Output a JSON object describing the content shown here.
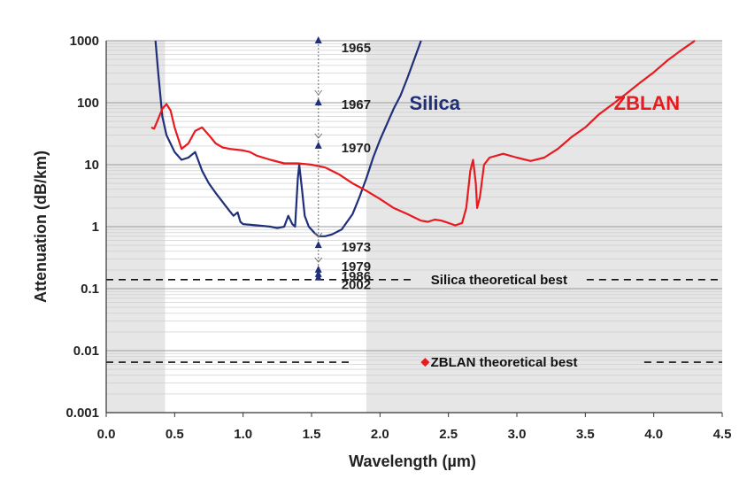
{
  "chart_data": {
    "type": "line",
    "xlabel": "Wavelength (µm)",
    "ylabel": "Attenuation (dB/km)",
    "xlim": [
      0,
      4.5
    ],
    "ylim": [
      0.001,
      1000
    ],
    "yscale": "log",
    "grid": true,
    "x_ticks": [
      "0.0",
      "0.5",
      "1.0",
      "1.5",
      "2.0",
      "2.5",
      "3.0",
      "3.5",
      "4.0",
      "4.5"
    ],
    "y_ticks": [
      "0.001",
      "0.01",
      "0.1",
      "1",
      "10",
      "100",
      "1000"
    ],
    "shaded_regions": [
      [
        0,
        0.43
      ],
      [
        1.9,
        4.5
      ]
    ],
    "series": [
      {
        "name": "Silica",
        "color": "#1f2f7a",
        "points": [
          [
            0.36,
            1000
          ],
          [
            0.38,
            300
          ],
          [
            0.41,
            60
          ],
          [
            0.44,
            30
          ],
          [
            0.5,
            16
          ],
          [
            0.55,
            12
          ],
          [
            0.6,
            13
          ],
          [
            0.65,
            16
          ],
          [
            0.7,
            8
          ],
          [
            0.75,
            5
          ],
          [
            0.8,
            3.5
          ],
          [
            0.85,
            2.5
          ],
          [
            0.9,
            1.8
          ],
          [
            0.93,
            1.5
          ],
          [
            0.96,
            1.7
          ],
          [
            0.98,
            1.2
          ],
          [
            1.0,
            1.1
          ],
          [
            1.1,
            1.05
          ],
          [
            1.2,
            1.0
          ],
          [
            1.25,
            0.95
          ],
          [
            1.3,
            1.0
          ],
          [
            1.33,
            1.5
          ],
          [
            1.36,
            1.1
          ],
          [
            1.38,
            1.0
          ],
          [
            1.4,
            6
          ],
          [
            1.41,
            10
          ],
          [
            1.43,
            4
          ],
          [
            1.45,
            1.5
          ],
          [
            1.48,
            1.0
          ],
          [
            1.52,
            0.8
          ],
          [
            1.55,
            0.7
          ],
          [
            1.6,
            0.7
          ],
          [
            1.65,
            0.75
          ],
          [
            1.72,
            0.9
          ],
          [
            1.8,
            1.6
          ],
          [
            1.85,
            3
          ],
          [
            1.9,
            6
          ],
          [
            1.95,
            13
          ],
          [
            2.0,
            25
          ],
          [
            2.05,
            45
          ],
          [
            2.1,
            80
          ],
          [
            2.15,
            130
          ],
          [
            2.2,
            250
          ],
          [
            2.25,
            500
          ],
          [
            2.3,
            1000
          ]
        ]
      },
      {
        "name": "ZBLAN",
        "color": "#e8191f",
        "points": [
          [
            0.33,
            40
          ],
          [
            0.35,
            38
          ],
          [
            0.38,
            55
          ],
          [
            0.41,
            80
          ],
          [
            0.44,
            95
          ],
          [
            0.47,
            75
          ],
          [
            0.5,
            40
          ],
          [
            0.55,
            18
          ],
          [
            0.6,
            22
          ],
          [
            0.65,
            35
          ],
          [
            0.7,
            40
          ],
          [
            0.75,
            30
          ],
          [
            0.8,
            22
          ],
          [
            0.85,
            19
          ],
          [
            0.9,
            18
          ],
          [
            1.0,
            17
          ],
          [
            1.05,
            16
          ],
          [
            1.1,
            14
          ],
          [
            1.2,
            12
          ],
          [
            1.3,
            10.5
          ],
          [
            1.4,
            10.5
          ],
          [
            1.5,
            10
          ],
          [
            1.6,
            9
          ],
          [
            1.7,
            7
          ],
          [
            1.8,
            5
          ],
          [
            1.9,
            3.8
          ],
          [
            2.0,
            2.8
          ],
          [
            2.1,
            2.0
          ],
          [
            2.2,
            1.6
          ],
          [
            2.3,
            1.25
          ],
          [
            2.35,
            1.2
          ],
          [
            2.4,
            1.3
          ],
          [
            2.45,
            1.25
          ],
          [
            2.5,
            1.15
          ],
          [
            2.55,
            1.05
          ],
          [
            2.6,
            1.15
          ],
          [
            2.63,
            2.0
          ],
          [
            2.66,
            8
          ],
          [
            2.68,
            12
          ],
          [
            2.7,
            5
          ],
          [
            2.71,
            2.0
          ],
          [
            2.73,
            3.0
          ],
          [
            2.76,
            10
          ],
          [
            2.8,
            13
          ],
          [
            2.9,
            15
          ],
          [
            3.0,
            13
          ],
          [
            3.1,
            11.5
          ],
          [
            3.2,
            13
          ],
          [
            3.3,
            18
          ],
          [
            3.4,
            28
          ],
          [
            3.5,
            40
          ],
          [
            3.6,
            65
          ],
          [
            3.7,
            95
          ],
          [
            3.8,
            140
          ],
          [
            3.9,
            210
          ],
          [
            4.0,
            310
          ],
          [
            4.1,
            480
          ],
          [
            4.2,
            700
          ],
          [
            4.3,
            1000
          ]
        ]
      }
    ],
    "milestones": {
      "x": 1.55,
      "points": [
        {
          "year": "1965",
          "y": 1000
        },
        {
          "year": "1967",
          "y": 100
        },
        {
          "year": "1970",
          "y": 20
        },
        {
          "year": "1973",
          "y": 0.5
        },
        {
          "year": "1979",
          "y": 0.2
        },
        {
          "year": "1986",
          "y": 0.17
        },
        {
          "year": "2002",
          "y": 0.15
        }
      ]
    },
    "reference_lines": [
      {
        "label": "Silica theoretical best",
        "y": 0.14
      },
      {
        "label": "ZBLAN theoretical best",
        "y": 0.0065,
        "marker_x": 2.33
      }
    ],
    "series_labels": [
      {
        "text": "Silica",
        "x": 2.4,
        "y": 100,
        "color": "#1f2f7a"
      },
      {
        "text": "ZBLAN",
        "x": 3.95,
        "y": 100,
        "color": "#e8191f"
      }
    ]
  }
}
